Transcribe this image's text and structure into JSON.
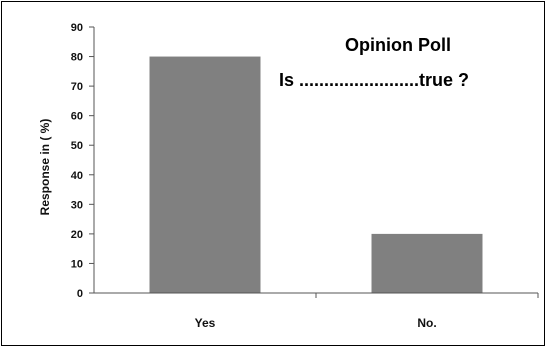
{
  "chart_data": {
    "type": "bar",
    "title": "Opinion Poll",
    "subtitle": "Is ........................true ?",
    "xlabel": "",
    "ylabel": "Response in ( %)",
    "categories": [
      "Yes",
      "No."
    ],
    "values": [
      80,
      20
    ],
    "ylim": [
      0,
      90
    ],
    "yticks": [
      "0",
      "10",
      "20",
      "30",
      "40",
      "50",
      "60",
      "70",
      "80",
      "90"
    ],
    "grid": false,
    "bar_color": "#808080"
  }
}
